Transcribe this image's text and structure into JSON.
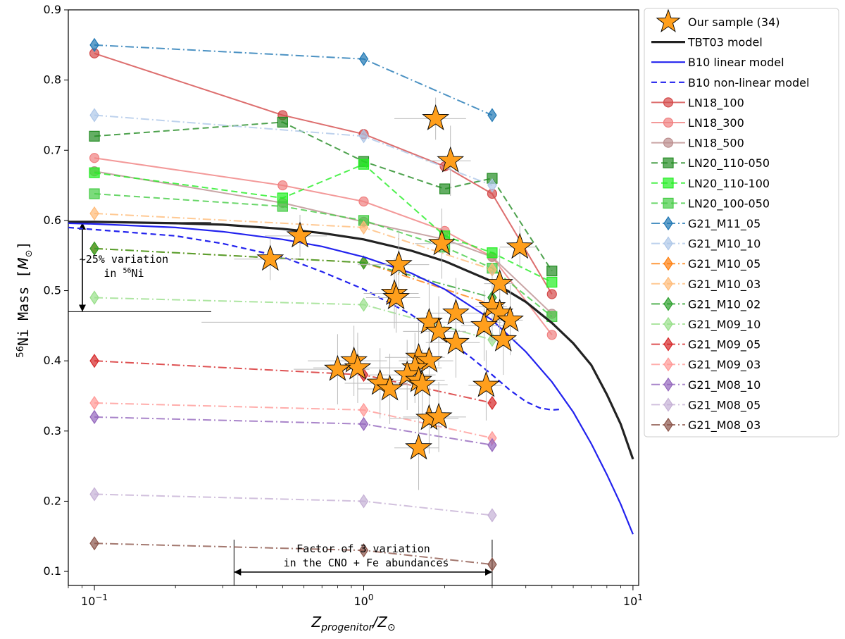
{
  "chart_data": {
    "type": "line",
    "xscale": "log",
    "xlim": [
      0.08,
      10.5
    ],
    "ylim": [
      0.08,
      0.9
    ],
    "xlabel": "Z_progenitor / Z_sun",
    "ylabel": "56Ni Mass [M_sun]",
    "xlabel_parts": {
      "base": "Z",
      "sub": "progenitor",
      "sep": "/Z",
      "sun": "⊙"
    },
    "ylabel_parts": {
      "sup": "56",
      "text": "Ni Mass [",
      "m": "M",
      "sun": "⊙",
      "close": "]"
    },
    "x_ticks": [
      {
        "value": 0.1,
        "base": "10",
        "exp": "−1"
      },
      {
        "value": 1,
        "base": "10",
        "exp": "0"
      },
      {
        "value": 10,
        "base": "10",
        "exp": "1"
      }
    ],
    "y_ticks": [
      0.1,
      0.2,
      0.3,
      0.4,
      0.5,
      0.6,
      0.7,
      0.8,
      0.9
    ],
    "annotations": {
      "vertical": {
        "line1": "~25% variation",
        "line2_pre": "in ",
        "line2_sup": "56",
        "line2_post": "Ni",
        "y_low": 0.47,
        "y_high": 0.597
      },
      "horizontal": {
        "line1": "Factor of 3 variation",
        "line2": "in the CNO + Fe abundances",
        "x_low": 0.33,
        "x_high": 3.0
      }
    },
    "model_curves": [
      {
        "name": "TBT03 model",
        "color": "#222222",
        "width": 3.2,
        "dash": "",
        "points": [
          [
            0.08,
            0.598
          ],
          [
            0.1,
            0.598
          ],
          [
            0.2,
            0.596
          ],
          [
            0.3,
            0.594
          ],
          [
            0.5,
            0.588
          ],
          [
            0.7,
            0.582
          ],
          [
            1.0,
            0.573
          ],
          [
            1.5,
            0.557
          ],
          [
            2.0,
            0.542
          ],
          [
            3.0,
            0.513
          ],
          [
            4.0,
            0.484
          ],
          [
            5.0,
            0.454
          ],
          [
            6.0,
            0.425
          ],
          [
            7.0,
            0.394
          ],
          [
            8.0,
            0.352
          ],
          [
            9.0,
            0.31
          ],
          [
            10.0,
            0.26
          ]
        ]
      },
      {
        "name": "B10 linear model",
        "color": "#2222ee",
        "width": 2.2,
        "dash": "",
        "points": [
          [
            0.08,
            0.596
          ],
          [
            0.1,
            0.595
          ],
          [
            0.2,
            0.59
          ],
          [
            0.3,
            0.584
          ],
          [
            0.5,
            0.573
          ],
          [
            0.7,
            0.563
          ],
          [
            1.0,
            0.548
          ],
          [
            1.5,
            0.525
          ],
          [
            2.0,
            0.502
          ],
          [
            3.0,
            0.458
          ],
          [
            4.0,
            0.413
          ],
          [
            5.0,
            0.37
          ],
          [
            6.0,
            0.327
          ],
          [
            7.0,
            0.282
          ],
          [
            8.0,
            0.238
          ],
          [
            9.0,
            0.196
          ],
          [
            10.0,
            0.153
          ]
        ]
      },
      {
        "name": "B10 non-linear model",
        "color": "#2222ee",
        "width": 2.2,
        "dash": "8,5",
        "points": [
          [
            0.08,
            0.59
          ],
          [
            0.1,
            0.587
          ],
          [
            0.2,
            0.578
          ],
          [
            0.3,
            0.567
          ],
          [
            0.5,
            0.548
          ],
          [
            0.7,
            0.527
          ],
          [
            1.0,
            0.502
          ],
          [
            1.5,
            0.466
          ],
          [
            2.0,
            0.433
          ],
          [
            2.5,
            0.405
          ],
          [
            3.0,
            0.38
          ],
          [
            3.5,
            0.358
          ],
          [
            4.0,
            0.342
          ],
          [
            4.5,
            0.333
          ],
          [
            5.0,
            0.33
          ],
          [
            5.4,
            0.331
          ]
        ]
      }
    ],
    "series": [
      {
        "name": "LN18_100",
        "color": "#d44a4a",
        "marker": "circle",
        "line": "solid",
        "x": [
          0.1,
          0.5,
          1,
          2,
          3,
          5
        ],
        "y": [
          0.838,
          0.75,
          0.723,
          0.677,
          0.638,
          0.495
        ]
      },
      {
        "name": "LN18_300",
        "color": "#f08080",
        "marker": "circle",
        "line": "solid",
        "x": [
          0.1,
          0.5,
          1,
          2,
          3,
          5
        ],
        "y": [
          0.689,
          0.65,
          0.627,
          0.585,
          0.548,
          0.437
        ]
      },
      {
        "name": "LN18_500",
        "color": "#bc8f8f",
        "marker": "circle",
        "line": "solid",
        "x": [
          0.1,
          0.5,
          1,
          2,
          3,
          5
        ],
        "y": [
          0.67,
          0.625,
          0.598,
          0.573,
          0.548,
          0.467
        ]
      },
      {
        "name": "LN20_110-050",
        "color": "#228b22",
        "marker": "square",
        "line": "dashed",
        "x": [
          0.1,
          0.5,
          1,
          2,
          3,
          5
        ],
        "y": [
          0.72,
          0.74,
          0.684,
          0.645,
          0.66,
          0.528
        ]
      },
      {
        "name": "LN20_110-100",
        "color": "#22ee22",
        "marker": "square",
        "line": "dashed",
        "x": [
          0.1,
          0.5,
          1,
          2,
          3,
          5
        ],
        "y": [
          0.668,
          0.632,
          0.68,
          0.578,
          0.554,
          0.512
        ]
      },
      {
        "name": "LN20_100-050",
        "color": "#44cc44",
        "marker": "square",
        "line": "dashed",
        "x": [
          0.1,
          0.5,
          1,
          2,
          3,
          5
        ],
        "y": [
          0.638,
          0.62,
          0.6,
          0.562,
          0.532,
          0.463
        ]
      },
      {
        "name": "G21_M11_05",
        "color": "#1f77b4",
        "marker": "diamond",
        "line": "dashdot",
        "x": [
          0.1,
          1,
          3
        ],
        "y": [
          0.85,
          0.83,
          0.75
        ]
      },
      {
        "name": "G21_M10_10",
        "color": "#aec7e8",
        "marker": "diamond",
        "line": "dashdot",
        "x": [
          0.1,
          1,
          3
        ],
        "y": [
          0.75,
          0.72,
          0.65
        ]
      },
      {
        "name": "G21_M10_05",
        "color": "#ff7f0e",
        "marker": "diamond",
        "line": "dashdot",
        "x": [
          0.1,
          1,
          3
        ],
        "y": [
          0.56,
          0.54,
          0.48
        ]
      },
      {
        "name": "G21_M10_03",
        "color": "#ffbb78",
        "marker": "diamond",
        "line": "dashdot",
        "x": [
          0.1,
          1,
          3
        ],
        "y": [
          0.61,
          0.59,
          0.53
        ]
      },
      {
        "name": "G21_M10_02",
        "color": "#2ca02c",
        "marker": "diamond",
        "line": "dashdot",
        "x": [
          0.1,
          1,
          3
        ],
        "y": [
          0.56,
          0.54,
          0.49
        ]
      },
      {
        "name": "G21_M09_10",
        "color": "#98df8a",
        "marker": "diamond",
        "line": "dashdot",
        "x": [
          0.1,
          1,
          3
        ],
        "y": [
          0.49,
          0.48,
          0.43
        ]
      },
      {
        "name": "G21_M09_05",
        "color": "#d62728",
        "marker": "diamond",
        "line": "dashdot",
        "x": [
          0.1,
          1,
          3
        ],
        "y": [
          0.4,
          0.38,
          0.34
        ]
      },
      {
        "name": "G21_M09_03",
        "color": "#ff9896",
        "marker": "diamond",
        "line": "dashdot",
        "x": [
          0.1,
          1,
          3
        ],
        "y": [
          0.34,
          0.33,
          0.29
        ]
      },
      {
        "name": "G21_M08_10",
        "color": "#9467bd",
        "marker": "diamond",
        "line": "dashdot",
        "x": [
          0.1,
          1,
          3
        ],
        "y": [
          0.32,
          0.31,
          0.28
        ]
      },
      {
        "name": "G21_M08_05",
        "color": "#c5b0d5",
        "marker": "diamond",
        "line": "dashdot",
        "x": [
          0.1,
          1,
          3
        ],
        "y": [
          0.21,
          0.2,
          0.18
        ]
      },
      {
        "name": "G21_M08_03",
        "color": "#8c564b",
        "marker": "diamond",
        "line": "dashdot",
        "x": [
          0.1,
          1,
          3
        ],
        "y": [
          0.14,
          0.13,
          0.11
        ]
      }
    ],
    "sample": {
      "name": "Our sample (34)",
      "color": "#ff9f1c",
      "points": [
        {
          "x": 0.45,
          "y": 0.545,
          "xerr": 0.12,
          "yerr": 0.03
        },
        {
          "x": 0.58,
          "y": 0.578,
          "xerr": 0.15,
          "yerr": 0.03
        },
        {
          "x": 1.35,
          "y": 0.537,
          "xerr": 0.4,
          "yerr": 0.05
        },
        {
          "x": 1.3,
          "y": 0.496,
          "xerr": 0.3,
          "yerr": 0.05
        },
        {
          "x": 1.32,
          "y": 0.49,
          "xerr": 0.3,
          "yerr": 0.05
        },
        {
          "x": 1.85,
          "y": 0.745,
          "xerr": 0.55,
          "yerr": 0.03
        },
        {
          "x": 2.1,
          "y": 0.685,
          "xerr": 0.4,
          "yerr": 0.05
        },
        {
          "x": 1.95,
          "y": 0.567,
          "xerr": 0.4,
          "yerr": 0.05
        },
        {
          "x": 3.8,
          "y": 0.562,
          "xerr": 0.6,
          "yerr": 0.03
        },
        {
          "x": 3.2,
          "y": 0.51,
          "xerr": 0.4,
          "yerr": 0.05
        },
        {
          "x": 3.0,
          "y": 0.477,
          "xerr": 0.4,
          "yerr": 0.05
        },
        {
          "x": 3.2,
          "y": 0.468,
          "xerr": 0.4,
          "yerr": 0.05
        },
        {
          "x": 3.5,
          "y": 0.458,
          "xerr": 0.4,
          "yerr": 0.05
        },
        {
          "x": 3.3,
          "y": 0.43,
          "xerr": 0.4,
          "yerr": 0.05
        },
        {
          "x": 2.2,
          "y": 0.468,
          "xerr": 0.5,
          "yerr": 0.05
        },
        {
          "x": 1.75,
          "y": 0.455,
          "xerr": 1.5,
          "yerr": 0.06
        },
        {
          "x": 1.9,
          "y": 0.442,
          "xerr": 0.5,
          "yerr": 0.05
        },
        {
          "x": 2.2,
          "y": 0.426,
          "xerr": 0.5,
          "yerr": 0.05
        },
        {
          "x": 1.6,
          "y": 0.405,
          "xerr": 0.4,
          "yerr": 0.05
        },
        {
          "x": 1.75,
          "y": 0.4,
          "xerr": 0.4,
          "yerr": 0.05
        },
        {
          "x": 1.55,
          "y": 0.39,
          "xerr": 0.4,
          "yerr": 0.05
        },
        {
          "x": 1.45,
          "y": 0.38,
          "xerr": 0.4,
          "yerr": 0.05
        },
        {
          "x": 1.6,
          "y": 0.372,
          "xerr": 0.4,
          "yerr": 0.05
        },
        {
          "x": 1.65,
          "y": 0.366,
          "xerr": 0.4,
          "yerr": 0.05
        },
        {
          "x": 1.15,
          "y": 0.368,
          "xerr": 0.3,
          "yerr": 0.05
        },
        {
          "x": 0.92,
          "y": 0.4,
          "xerr": 0.3,
          "yerr": 0.05
        },
        {
          "x": 0.95,
          "y": 0.39,
          "xerr": 0.3,
          "yerr": 0.05
        },
        {
          "x": 0.8,
          "y": 0.388,
          "xerr": 0.25,
          "yerr": 0.05
        },
        {
          "x": 1.25,
          "y": 0.36,
          "xerr": 0.3,
          "yerr": 0.05
        },
        {
          "x": 2.85,
          "y": 0.365,
          "xerr": 0.4,
          "yerr": 0.05
        },
        {
          "x": 1.75,
          "y": 0.318,
          "xerr": 0.5,
          "yerr": 0.05
        },
        {
          "x": 1.9,
          "y": 0.32,
          "xerr": 0.5,
          "yerr": 0.05
        },
        {
          "x": 1.6,
          "y": 0.276,
          "xerr": 0.3,
          "yerr": 0.06
        },
        {
          "x": 2.8,
          "y": 0.45,
          "xerr": 0.5,
          "yerr": 0.05
        }
      ]
    }
  }
}
